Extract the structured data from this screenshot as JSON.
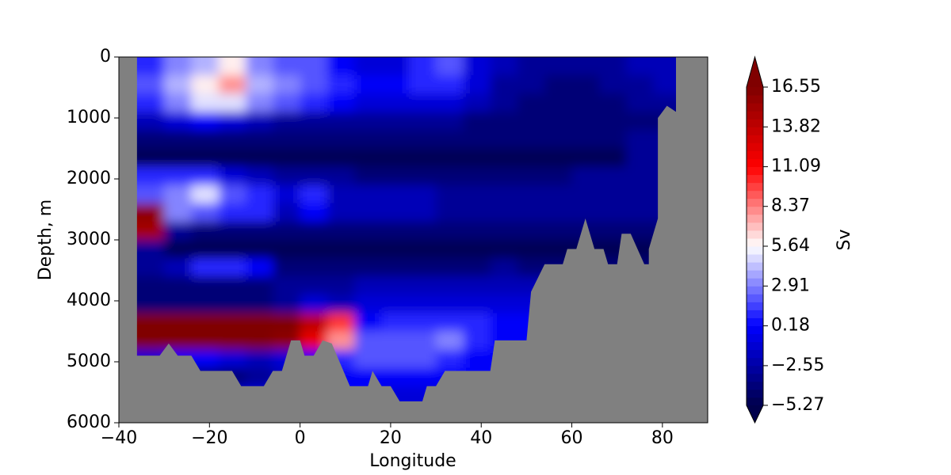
{
  "chart_data": {
    "type": "contour",
    "xlabel": "Longitude",
    "ylabel": "Depth, m",
    "colorbar_label": "Sv",
    "colormap": "seismic",
    "xlim": [
      -40,
      90
    ],
    "ylim": [
      6000,
      0
    ],
    "xticks": [
      {
        "value": -40,
        "label": "−40"
      },
      {
        "value": -20,
        "label": "−20"
      },
      0,
      20,
      40,
      60,
      80
    ],
    "yticks": [
      0,
      1000,
      2000,
      3000,
      4000,
      5000,
      6000
    ],
    "clim": [
      -5.27,
      16.55
    ],
    "cticks": [
      {
        "value": -5.27,
        "label": "−5.27"
      },
      {
        "value": -2.55,
        "label": "−2.55"
      },
      0.18,
      2.91,
      5.64,
      8.37,
      11.09,
      13.82,
      16.55
    ],
    "x": [
      -33,
      -27,
      -21,
      -15,
      -9,
      -3,
      3,
      9,
      15,
      21,
      27,
      33,
      39,
      45,
      51,
      57,
      63,
      69,
      75,
      81
    ],
    "y": [
      150,
      450,
      750,
      1050,
      1350,
      1650,
      1950,
      2250,
      2550,
      2850,
      3150,
      3450,
      3750,
      4050,
      4350,
      4650,
      4950,
      5250,
      5550,
      5850
    ],
    "z": [
      [
        1,
        3,
        4,
        6,
        3,
        2,
        2,
        0,
        -1,
        -1,
        1,
        2,
        -1,
        -2,
        -3,
        -3,
        -3,
        -3,
        -2,
        -2
      ],
      [
        2,
        4,
        6,
        8,
        4,
        3,
        2,
        1,
        0,
        0,
        1,
        1,
        -1,
        -3,
        -3,
        -4,
        -4,
        -3,
        -3,
        -2
      ],
      [
        1,
        3,
        5,
        5,
        3,
        2,
        1,
        0,
        -1,
        -1,
        -1,
        -1,
        -2,
        -3,
        -4,
        -4,
        -4,
        -4,
        -3,
        -3
      ],
      [
        -2,
        -1,
        0,
        -1,
        -2,
        -3,
        -3,
        -3,
        -3,
        -3,
        -3,
        -3,
        -4,
        -4,
        -4,
        -4,
        -4,
        -4,
        -4,
        -4
      ],
      [
        -4,
        -4,
        -4,
        -4,
        -4,
        -4,
        -4,
        -4,
        -4,
        -4,
        -4,
        -4,
        -4,
        -4,
        -4,
        -4,
        -4,
        -4,
        -3,
        -3
      ],
      [
        -5,
        -5,
        -5,
        -5,
        -5,
        -5,
        -5,
        -5,
        -5,
        -5,
        -5,
        -5,
        -5,
        -5,
        -5,
        -5,
        -5,
        -5,
        -3,
        -3
      ],
      [
        1,
        1,
        1,
        -1,
        -2,
        -3,
        -3,
        -3,
        -4,
        -4,
        -4,
        -4,
        -4,
        -4,
        -4,
        -4,
        -3,
        -3,
        -3,
        -3
      ],
      [
        2,
        3,
        5,
        2,
        1,
        -1,
        1,
        -2,
        -2,
        -2,
        -2,
        -3,
        -3,
        -3,
        -3,
        -3,
        -3,
        -3,
        -3,
        -3
      ],
      [
        16,
        3,
        2,
        1,
        1,
        -2,
        0,
        -2,
        -2,
        -2,
        -2,
        -3,
        -3,
        -3,
        -3,
        -3,
        -3,
        -3,
        -3,
        -3
      ],
      [
        15,
        -3,
        -4,
        -4,
        -4,
        -4,
        -4,
        -4,
        -4,
        -4,
        -4,
        -4,
        -4,
        -4,
        -4,
        -4,
        -4,
        -4,
        -4,
        -4
      ],
      [
        -3,
        -5,
        -5,
        -5,
        -5,
        -5,
        -5,
        -5,
        -5,
        -5,
        -5,
        -5,
        -5,
        -5,
        -5,
        -5,
        -5,
        -5,
        -5,
        -5
      ],
      [
        -3,
        -2,
        1,
        1,
        0,
        -4,
        -4,
        -4,
        -4,
        -4,
        -4,
        -4,
        -4,
        -3,
        -4,
        -4,
        -4,
        -4,
        -4,
        -4
      ],
      [
        -4,
        -4,
        -4,
        -4,
        -4,
        -3,
        -3,
        -3,
        -2,
        -2,
        -2,
        -2,
        -2,
        -2,
        -2,
        -2,
        -2,
        -2,
        -2,
        -2
      ],
      [
        -4,
        -4,
        -4,
        -4,
        -4,
        -3,
        -1,
        -2,
        -1,
        -1,
        -1,
        -1,
        -1,
        -1,
        -1,
        -1,
        -1,
        -1,
        -1,
        -1
      ],
      [
        17,
        17,
        17,
        17,
        17,
        17,
        14,
        10,
        0,
        1,
        1,
        1,
        1,
        0,
        0,
        0,
        0,
        0,
        0,
        0
      ],
      [
        17,
        17,
        17,
        17,
        17,
        16,
        12,
        8,
        2,
        2,
        2,
        3,
        1,
        0,
        0,
        0,
        0,
        0,
        0,
        0
      ],
      [
        -1,
        0,
        0,
        -1,
        -2,
        -1,
        0,
        1,
        2,
        2,
        2,
        1,
        0,
        0,
        0,
        0,
        0,
        0,
        0,
        0
      ],
      [
        -4,
        -4,
        -4,
        -4,
        -3,
        -2,
        -1,
        0,
        0,
        0,
        0,
        0,
        0,
        0,
        0,
        0,
        0,
        0,
        0,
        0
      ],
      [
        -1,
        -1,
        -1,
        -1,
        -1,
        -1,
        -1,
        0,
        0,
        -1,
        -1,
        -1,
        -1,
        -1,
        -1,
        -1,
        -1,
        -1,
        -1,
        -1
      ],
      [
        -1,
        -1,
        -1,
        -1,
        -1,
        -1,
        -1,
        -1,
        -1,
        -1,
        -1,
        -1,
        -1,
        -1,
        -1,
        -1,
        -1,
        -1,
        -1,
        -1
      ]
    ],
    "land_color": "#808080",
    "bathymetry": {
      "x": [
        -40,
        -36,
        -36,
        -31,
        -29,
        -27,
        -24,
        -22,
        -15,
        -13,
        -8,
        -6,
        -4,
        -2,
        0,
        1,
        3,
        5,
        7,
        11,
        15,
        16,
        18,
        20,
        22,
        27,
        28,
        30,
        32,
        42,
        43,
        50,
        51,
        54,
        58,
        59,
        61,
        63,
        65,
        67,
        68,
        70,
        71,
        73,
        76,
        77,
        77,
        78,
        79,
        79,
        81,
        83,
        83,
        90,
        90,
        -40
      ],
      "depth": [
        0,
        0,
        4900,
        4900,
        4700,
        4900,
        4900,
        5150,
        5150,
        5400,
        5400,
        5150,
        5150,
        4650,
        4650,
        4900,
        4900,
        4650,
        4700,
        5400,
        5400,
        5150,
        5400,
        5400,
        5650,
        5650,
        5400,
        5400,
        5150,
        5150,
        4650,
        4650,
        3850,
        3400,
        3400,
        3150,
        3150,
        2650,
        3150,
        3150,
        3400,
        3400,
        2900,
        2900,
        3400,
        3400,
        3150,
        2900,
        2650,
        1000,
        800,
        900,
        0,
        0,
        6000,
        6000
      ]
    }
  }
}
